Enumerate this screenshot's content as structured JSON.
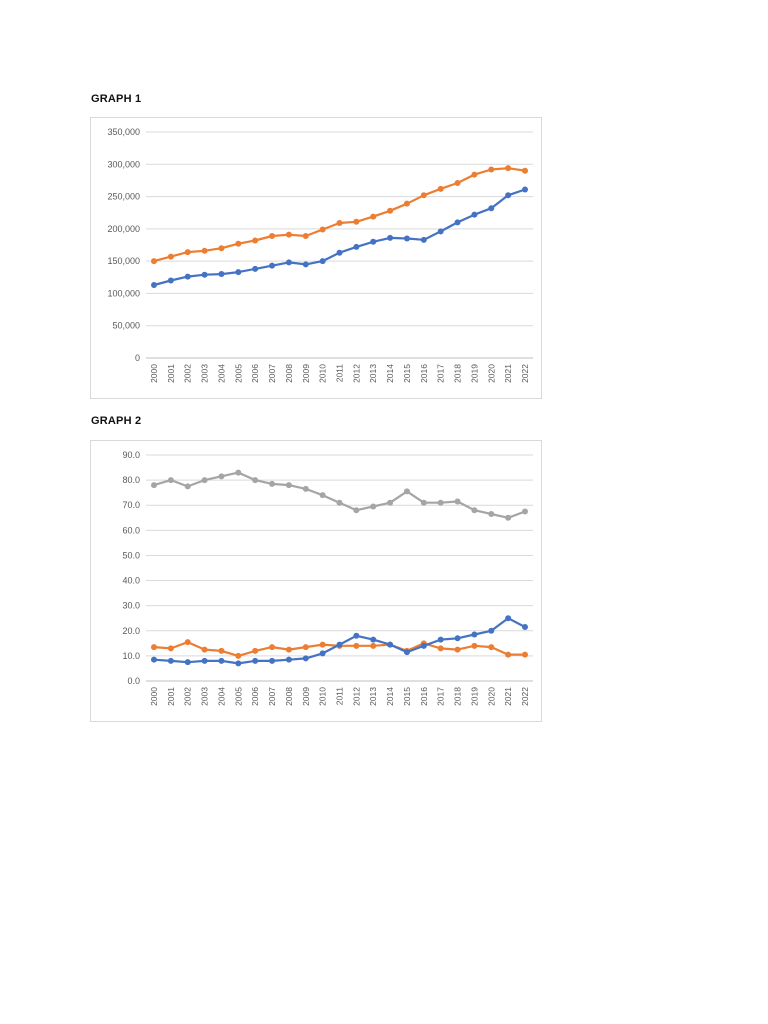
{
  "chart_data": [
    {
      "type": "line",
      "title": "GRAPH 1",
      "xlabel": "",
      "ylabel": "",
      "legend": "none",
      "grid": true,
      "categories": [
        "2000",
        "2001",
        "2002",
        "2003",
        "2004",
        "2005",
        "2006",
        "2007",
        "2008",
        "2009",
        "2010",
        "2011",
        "2012",
        "2013",
        "2014",
        "2015",
        "2016",
        "2017",
        "2018",
        "2019",
        "2020",
        "2021",
        "2022"
      ],
      "series": [
        {
          "name": "orange",
          "color": "#ED7D31",
          "values": [
            150000,
            157000,
            164000,
            166000,
            170000,
            177000,
            182000,
            189000,
            191000,
            189000,
            199000,
            209000,
            211000,
            219000,
            228000,
            239000,
            252000,
            262000,
            271000,
            284000,
            292000,
            294000,
            290000
          ]
        },
        {
          "name": "blue",
          "color": "#4472C4",
          "values": [
            113000,
            120000,
            126000,
            129000,
            130000,
            133000,
            138000,
            143000,
            148000,
            145000,
            150000,
            163000,
            172000,
            180000,
            186000,
            185000,
            183000,
            196000,
            210000,
            222000,
            232000,
            252000,
            261000
          ]
        }
      ],
      "ylim": [
        0,
        350000
      ],
      "ytick_step": 50000,
      "ytick_format": "comma",
      "ytick_labels": [
        "0",
        "50,000",
        "100,000",
        "150,000",
        "200,000",
        "250,000",
        "300,000",
        "350,000"
      ]
    },
    {
      "type": "line",
      "title": "GRAPH 2",
      "xlabel": "",
      "ylabel": "",
      "legend": "none",
      "grid": true,
      "categories": [
        "2000",
        "2001",
        "2002",
        "2003",
        "2004",
        "2005",
        "2006",
        "2007",
        "2008",
        "2009",
        "2010",
        "2011",
        "2012",
        "2013",
        "2014",
        "2015",
        "2016",
        "2017",
        "2018",
        "2019",
        "2020",
        "2021",
        "2022"
      ],
      "series": [
        {
          "name": "gray",
          "color": "#A5A5A5",
          "values": [
            78.0,
            80.0,
            77.5,
            80.0,
            81.5,
            83.0,
            80.0,
            78.5,
            78.0,
            76.5,
            74.0,
            71.0,
            68.0,
            69.5,
            71.0,
            75.5,
            71.0,
            71.0,
            71.5,
            68.0,
            66.5,
            65.0,
            67.5
          ]
        },
        {
          "name": "orange",
          "color": "#ED7D31",
          "values": [
            13.5,
            13.0,
            15.5,
            12.5,
            12.0,
            10.0,
            12.0,
            13.5,
            12.5,
            13.5,
            14.5,
            14.0,
            14.0,
            14.0,
            14.5,
            12.0,
            15.0,
            13.0,
            12.5,
            14.0,
            13.5,
            10.5,
            10.5
          ]
        },
        {
          "name": "blue",
          "color": "#4472C4",
          "values": [
            8.5,
            8.0,
            7.5,
            8.0,
            8.0,
            7.0,
            8.0,
            8.0,
            8.5,
            9.0,
            11.0,
            14.5,
            18.0,
            16.5,
            14.5,
            11.5,
            14.0,
            16.5,
            17.0,
            18.5,
            20.0,
            25.0,
            21.5
          ]
        }
      ],
      "ylim": [
        0,
        90
      ],
      "ytick_step": 10,
      "ytick_format": "one_decimal",
      "ytick_labels": [
        "0.0",
        "10.0",
        "20.0",
        "30.0",
        "40.0",
        "50.0",
        "60.0",
        "70.0",
        "80.0",
        "90.0"
      ]
    }
  ]
}
